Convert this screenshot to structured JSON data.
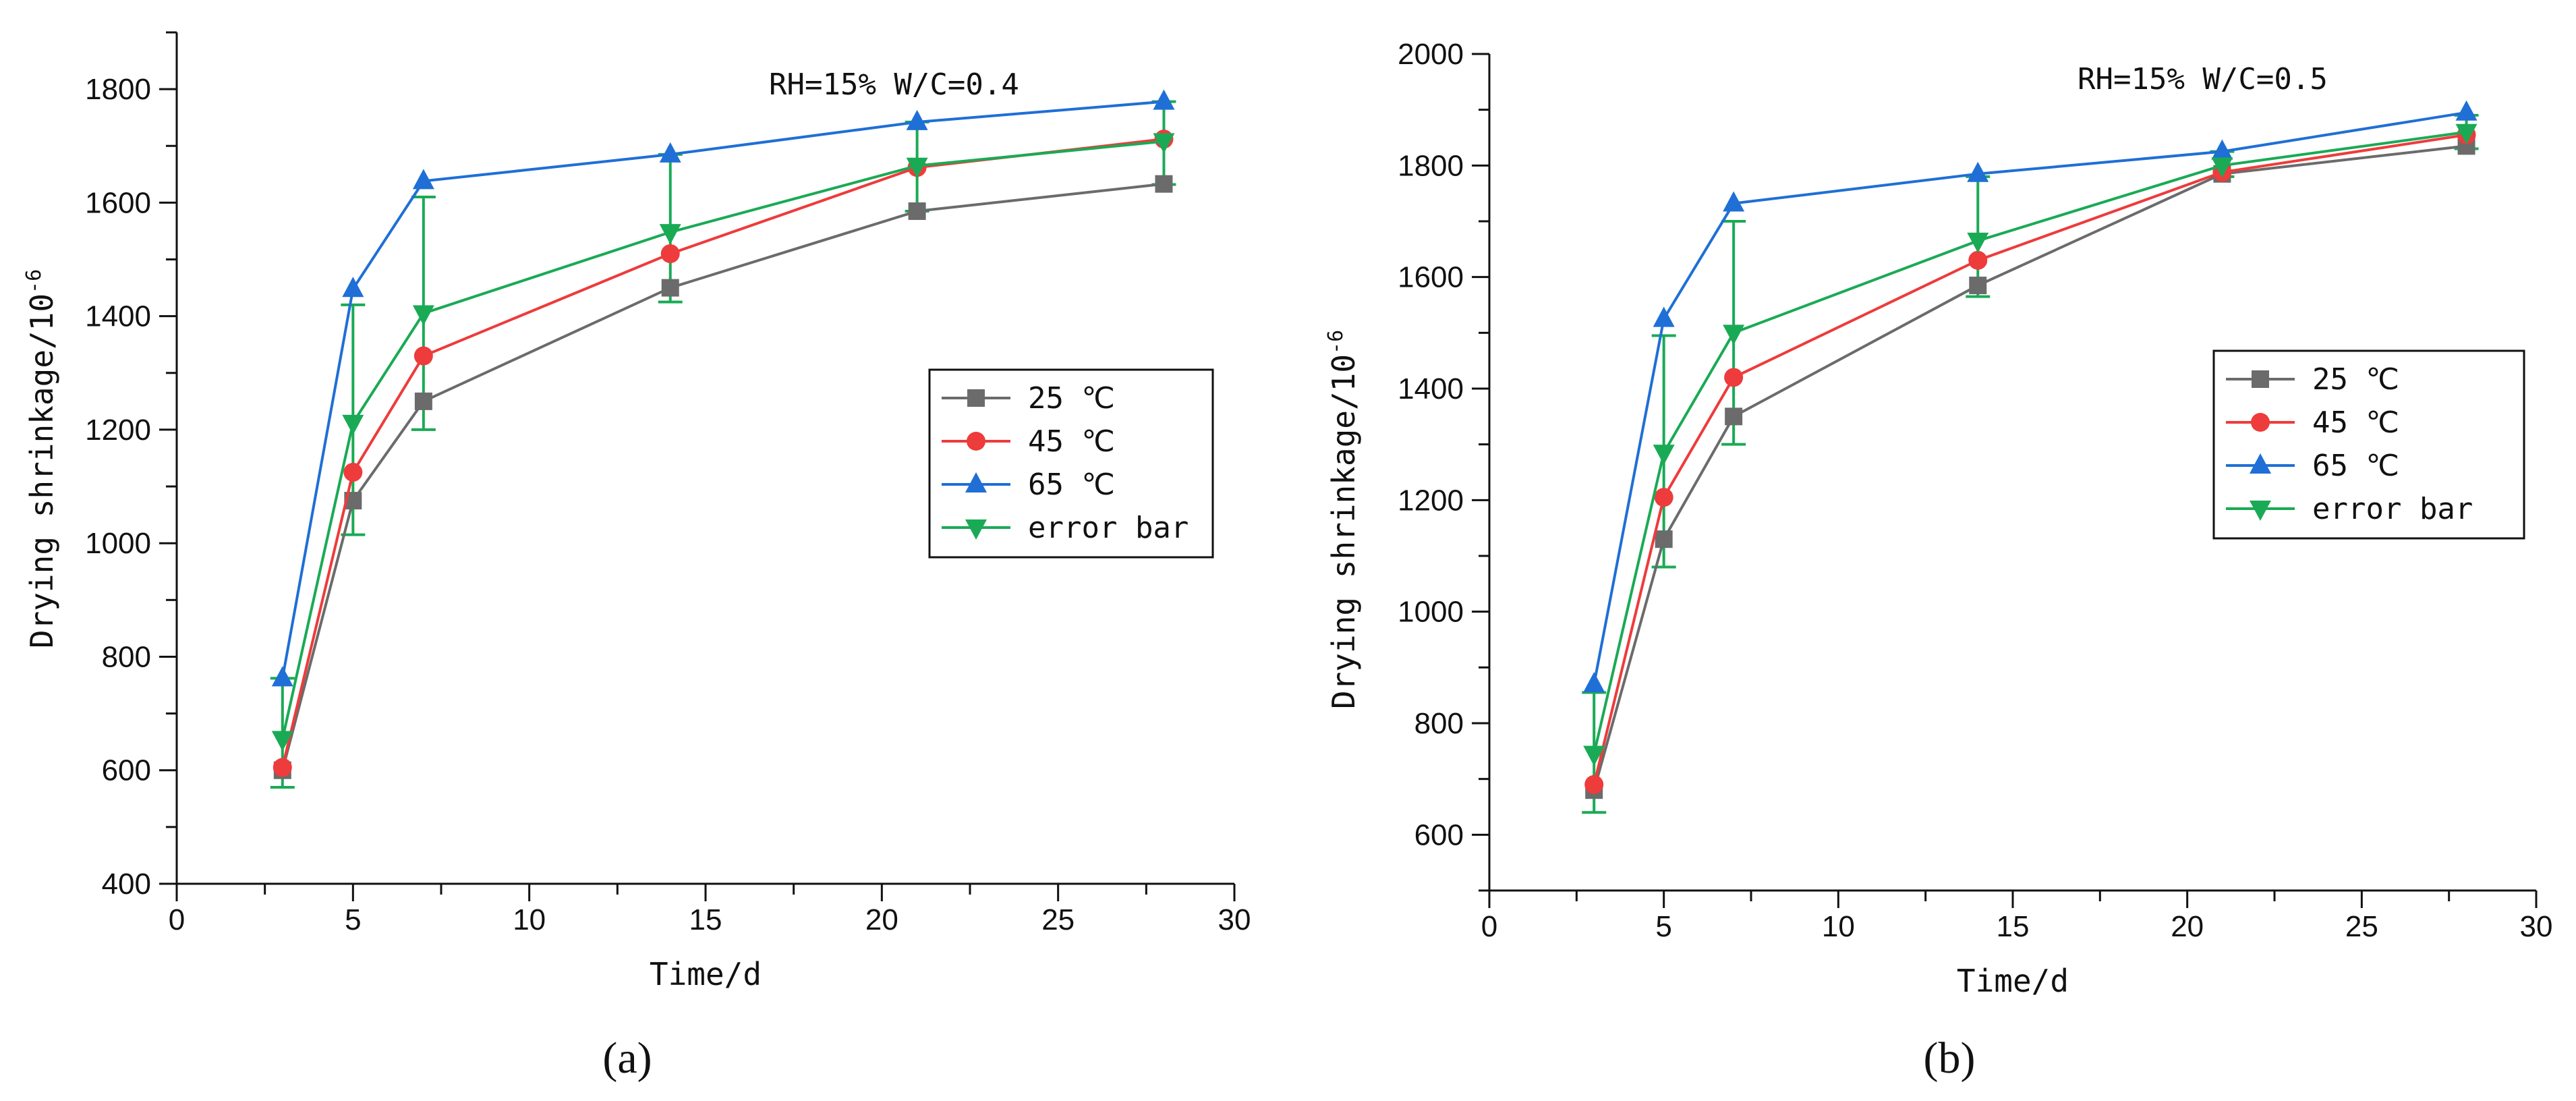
{
  "chart_data": [
    {
      "type": "line",
      "panel_label": "(a)",
      "annotation": "RH=15% W/C=0.4",
      "xlabel": "Time/d",
      "ylabel": "Drying shrinkage/10",
      "ylabel_exponent": "-6",
      "xlim": [
        0,
        30
      ],
      "ylim": [
        400,
        1900
      ],
      "xticks": [
        0,
        5,
        10,
        15,
        20,
        25,
        30
      ],
      "yticks": [
        400,
        600,
        800,
        1000,
        1200,
        1400,
        1600,
        1800
      ],
      "x": [
        3,
        5,
        7,
        14,
        21,
        28
      ],
      "legend_position": "right-middle",
      "series": [
        {
          "name": "25 ℃",
          "color": "#6b6b6b",
          "marker": "square",
          "values": [
            600,
            1075,
            1250,
            1450,
            1585,
            1633
          ]
        },
        {
          "name": "45 ℃",
          "color": "#ee3b3b",
          "marker": "circle",
          "values": [
            605,
            1125,
            1330,
            1510,
            1662,
            1712
          ]
        },
        {
          "name": "65 ℃",
          "color": "#1f6fd6",
          "marker": "triangle-up",
          "values": [
            762,
            1448,
            1638,
            1685,
            1742,
            1778
          ]
        },
        {
          "name": "error bar",
          "color": "#1aaa55",
          "marker": "triangle-down",
          "values": [
            655,
            1212,
            1405,
            1548,
            1665,
            1708
          ],
          "error_low": [
            570,
            1015,
            1200,
            1425,
            1585,
            1632
          ],
          "error_high": [
            762,
            1420,
            1610,
            1685,
            1742,
            1778
          ]
        }
      ]
    },
    {
      "type": "line",
      "panel_label": "(b)",
      "annotation": "RH=15% W/C=0.5",
      "xlabel": "Time/d",
      "ylabel": "Drying shrinkage/10",
      "ylabel_exponent": "-6",
      "xlim": [
        0,
        30
      ],
      "ylim": [
        500,
        2000
      ],
      "xticks": [
        0,
        5,
        10,
        15,
        20,
        25,
        30
      ],
      "yticks": [
        600,
        800,
        1000,
        1200,
        1400,
        1600,
        1800,
        2000
      ],
      "x": [
        3,
        5,
        7,
        14,
        21,
        28
      ],
      "legend_position": "right-middle",
      "series": [
        {
          "name": "25 ℃",
          "color": "#6b6b6b",
          "marker": "square",
          "values": [
            680,
            1130,
            1350,
            1585,
            1785,
            1835
          ]
        },
        {
          "name": "45 ℃",
          "color": "#ee3b3b",
          "marker": "circle",
          "values": [
            690,
            1205,
            1420,
            1630,
            1788,
            1855
          ]
        },
        {
          "name": "65 ℃",
          "color": "#1f6fd6",
          "marker": "triangle-up",
          "values": [
            870,
            1525,
            1732,
            1785,
            1825,
            1895
          ]
        },
        {
          "name": "error bar",
          "color": "#1aaa55",
          "marker": "triangle-down",
          "values": [
            745,
            1285,
            1500,
            1665,
            1800,
            1860
          ],
          "error_low": [
            640,
            1080,
            1300,
            1565,
            1780,
            1830
          ],
          "error_high": [
            855,
            1495,
            1700,
            1780,
            1825,
            1890
          ]
        }
      ]
    }
  ]
}
